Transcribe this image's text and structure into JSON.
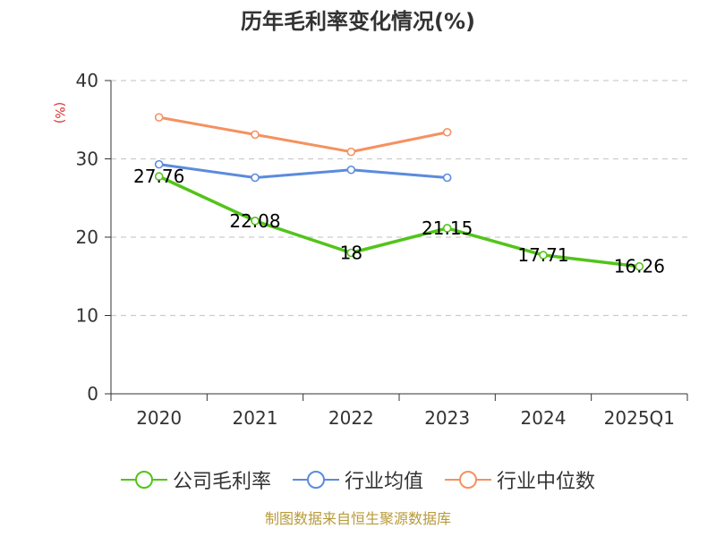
{
  "title": "历年毛利率变化情况(%)",
  "source": "制图数据来自恒生聚源数据库",
  "chart_data": {
    "type": "line",
    "title": "历年毛利率变化情况(%)",
    "ylabel": "(%)",
    "xlabel": "",
    "categories": [
      "2020",
      "2021",
      "2022",
      "2023",
      "2024",
      "2025Q1"
    ],
    "ylim": [
      0,
      40
    ],
    "yticks": [
      0,
      10,
      20,
      30,
      40
    ],
    "grid": true,
    "legend_position": "bottom",
    "series": [
      {
        "name": "公司毛利率",
        "color": "#52c41a",
        "values": [
          27.76,
          22.08,
          18,
          21.15,
          17.71,
          16.26
        ],
        "labels": [
          "27.76",
          "22.08",
          "18",
          "21.15",
          "17.71",
          "16.26"
        ]
      },
      {
        "name": "行业均值",
        "color": "#5b8bdc",
        "values": [
          29.3,
          27.6,
          28.6,
          27.6,
          null,
          null
        ]
      },
      {
        "name": "行业中位数",
        "color": "#f59160",
        "values": [
          35.3,
          33.1,
          30.9,
          33.4,
          null,
          null
        ]
      }
    ]
  }
}
